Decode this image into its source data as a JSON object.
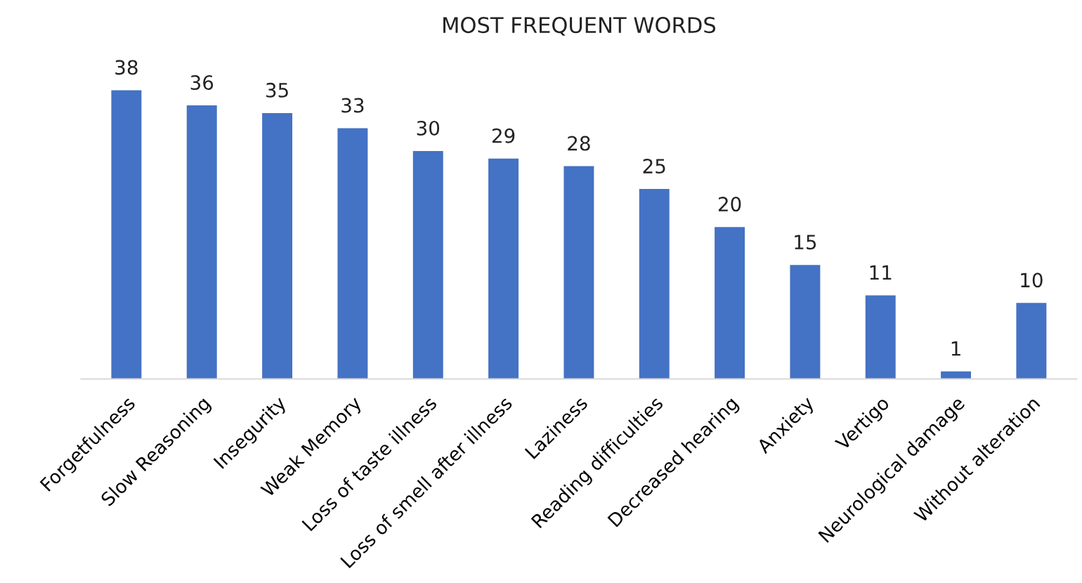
{
  "chart_data": {
    "type": "bar",
    "title": "MOST FREQUENT WORDS",
    "categories": [
      "Forgetfulness",
      "Slow Reasoning",
      "Insegurity",
      "Weak Memory",
      "Loss of taste illness",
      "Loss of smell after illness",
      "Laziness",
      "Reading difficulties",
      "Decreased hearing",
      "Anxiety",
      "Vertigo",
      "Neurological damage",
      "Without alteration"
    ],
    "values": [
      38,
      36,
      35,
      33,
      30,
      29,
      28,
      25,
      20,
      15,
      11,
      1,
      10
    ],
    "color": "#4472c4",
    "data_labels": true,
    "grid": false,
    "legend": false
  }
}
